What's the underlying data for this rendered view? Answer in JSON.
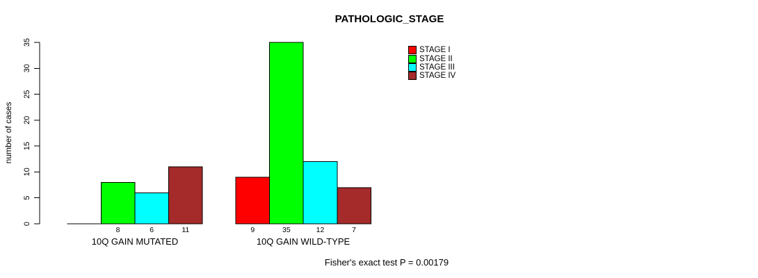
{
  "chart_data": {
    "type": "bar",
    "title": "PATHOLOGIC_STAGE",
    "xlabel": "",
    "ylabel": "number of cases",
    "ylim": [
      0,
      35
    ],
    "yticks": [
      0,
      5,
      10,
      15,
      20,
      25,
      30,
      35
    ],
    "categories": [
      "10Q GAIN MUTATED",
      "10Q GAIN WILD-TYPE"
    ],
    "series": [
      {
        "name": "STAGE I",
        "color": "#FF0000",
        "values": [
          0,
          9
        ]
      },
      {
        "name": "STAGE II",
        "color": "#00FF00",
        "values": [
          8,
          35
        ]
      },
      {
        "name": "STAGE III",
        "color": "#00FFFF",
        "values": [
          6,
          12
        ]
      },
      {
        "name": "STAGE IV",
        "color": "#A52A2A",
        "values": [
          11,
          7
        ]
      }
    ],
    "bar_value_labels_visible": true,
    "grid": false,
    "legend_position": "top-right",
    "annotation": "Fisher's exact test P = 0.00179",
    "axis_color": "#000000",
    "bar_border_color": "#000000",
    "background_color": "#FFFFFF"
  }
}
